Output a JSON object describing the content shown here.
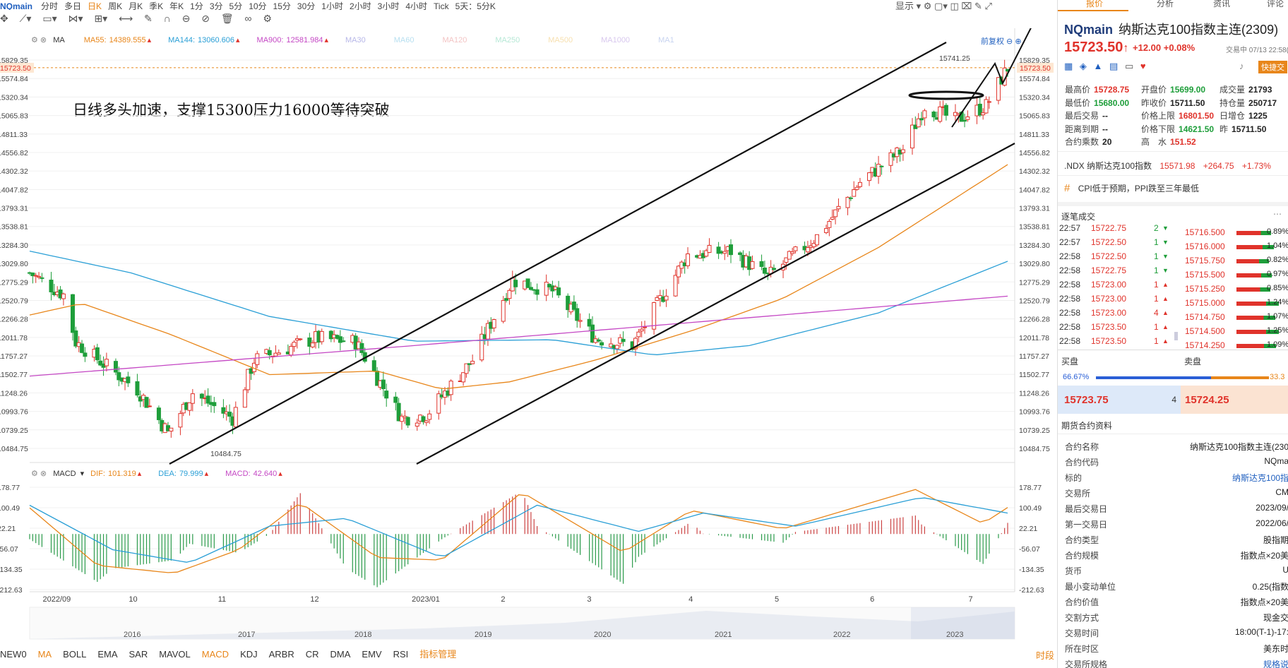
{
  "topbar": {
    "symbol": "NQmain",
    "periods": [
      "分时",
      "多日",
      "日K",
      "周K",
      "月K",
      "季K",
      "年K",
      "1分",
      "3分",
      "5分",
      "10分",
      "15分",
      "30分",
      "1小时",
      "2小时",
      "3小时",
      "4小时",
      "Tick",
      "5天：5分K"
    ],
    "active_period": "日K",
    "display_label": "显示"
  },
  "ma_legend": {
    "name": "MA",
    "items": [
      {
        "label": "MA55:",
        "value": "14389.555",
        "color": "#e8861a"
      },
      {
        "label": "MA144:",
        "value": "13060.606",
        "color": "#2a9fd6"
      },
      {
        "label": "MA900:",
        "value": "12581.984",
        "color": "#c447c4"
      },
      {
        "label": "MA30",
        "value": "",
        "color": "#b7b7e8"
      },
      {
        "label": "MA60",
        "value": "",
        "color": "#b7dff0"
      },
      {
        "label": "MA120",
        "value": "",
        "color": "#f3c4c4"
      },
      {
        "label": "MA250",
        "value": "",
        "color": "#b7e8d6"
      },
      {
        "label": "MA500",
        "value": "",
        "color": "#f7e0b0"
      },
      {
        "label": "MA1000",
        "value": "",
        "color": "#d8c8ee"
      },
      {
        "label": "MA1",
        "value": "",
        "color": "#c8d4f0"
      }
    ],
    "adjust_label": "前复权"
  },
  "annotation": "日线多头加速，支撑15300压力16000等待突破",
  "price_axis": [
    "15829.35",
    "15574.84",
    "15320.34",
    "15065.83",
    "14811.33",
    "14556.82",
    "14302.32",
    "14047.82",
    "13793.31",
    "13538.81",
    "13284.30",
    "13029.80",
    "12775.29",
    "12520.79",
    "12266.28",
    "12011.78",
    "11757.27",
    "11502.77",
    "11248.26",
    "10993.76",
    "10739.25",
    "10484.75"
  ],
  "current_price_tag": "15723.50",
  "high_label": "15741.25",
  "low_label": "10484.75",
  "macd_legend": {
    "name": "MACD",
    "items": [
      {
        "label": "DIF:",
        "value": "101.319",
        "color": "#e8861a"
      },
      {
        "label": "DEA:",
        "value": "79.999",
        "color": "#2a9fd6"
      },
      {
        "label": "MACD:",
        "value": "42.640",
        "color": "#c447c4"
      }
    ]
  },
  "macd_axis": [
    "178.77",
    "100.49",
    "22.21",
    "-56.07",
    "-134.35",
    "-212.63"
  ],
  "x_axis": [
    "2022/09",
    "10",
    "11",
    "12",
    "2023/01",
    "2",
    "3",
    "4",
    "5",
    "6",
    "7"
  ],
  "overview_years": [
    "2016",
    "2017",
    "2018",
    "2019",
    "2020",
    "2021",
    "2022",
    "2023"
  ],
  "bottombar": {
    "indicators": [
      "NEW0",
      "MA",
      "BOLL",
      "EMA",
      "SAR",
      "MAVOL",
      "MACD",
      "KDJ",
      "ARBR",
      "CR",
      "DMA",
      "EMV",
      "RSI",
      "指标管理"
    ],
    "active": [
      "MA",
      "MACD"
    ],
    "right_label": "时段"
  },
  "panel": {
    "tabs": [
      "报价",
      "分析",
      "资讯",
      "评论"
    ],
    "symbol": "NQmain",
    "name": "纳斯达克100指数主连(2309)",
    "price": "15723.50",
    "change": "+12.00",
    "change_pct": "+0.08%",
    "status_time": "交易中 07/13 22:58(美",
    "quick_trade": "快捷交",
    "stats": [
      {
        "k": "最高价",
        "v": "15728.75",
        "c": "red"
      },
      {
        "k": "开盘价",
        "v": "15699.00",
        "c": "green"
      },
      {
        "k": "成交量",
        "v": "21793",
        "c": "black"
      },
      {
        "k": "最低价",
        "v": "15680.00",
        "c": "green"
      },
      {
        "k": "昨收价",
        "v": "15711.50",
        "c": "black"
      },
      {
        "k": "持仓量",
        "v": "250717",
        "c": "black"
      },
      {
        "k": "最后交易",
        "v": "--",
        "c": "black"
      },
      {
        "k": "价格上限",
        "v": "16801.50",
        "c": "red"
      },
      {
        "k": "日增仓",
        "v": "1225",
        "c": "black"
      },
      {
        "k": "距离到期",
        "v": "--",
        "c": "black"
      },
      {
        "k": "价格下限",
        "v": "14621.50",
        "c": "green"
      },
      {
        "k": "昨",
        "v": "15711.50",
        "c": "black"
      },
      {
        "k": "合约乘数",
        "v": "20",
        "c": "black"
      },
      {
        "k": "高　水",
        "v": "151.52",
        "c": "red"
      }
    ],
    "index_line": {
      "name": ".NDX 纳斯达克100指数",
      "price": "15571.98",
      "chg": "+264.75",
      "pct": "+1.73%"
    },
    "news": "CPI低于预期，PPI跌至三年最低",
    "trades_title": "逐笔成交",
    "trades": [
      {
        "t": "22:57",
        "p": "15722.75",
        "v": "2",
        "d": "down"
      },
      {
        "t": "22:57",
        "p": "15722.50",
        "v": "1",
        "d": "down"
      },
      {
        "t": "22:58",
        "p": "15722.50",
        "v": "1",
        "d": "down"
      },
      {
        "t": "22:58",
        "p": "15722.75",
        "v": "1",
        "d": "down"
      },
      {
        "t": "22:58",
        "p": "15723.00",
        "v": "1",
        "d": "up"
      },
      {
        "t": "22:58",
        "p": "15723.00",
        "v": "1",
        "d": "up"
      },
      {
        "t": "22:58",
        "p": "15723.00",
        "v": "4",
        "d": "up"
      },
      {
        "t": "22:58",
        "p": "15723.50",
        "v": "1",
        "d": "up"
      },
      {
        "t": "22:58",
        "p": "15723.50",
        "v": "1",
        "d": "up"
      }
    ],
    "orderbook": [
      {
        "p": "15716.500",
        "pct": "0.89%",
        "bar": 0.7
      },
      {
        "p": "15716.000",
        "pct": "1.04%",
        "bar": 0.75
      },
      {
        "p": "15715.750",
        "pct": "0.82%",
        "bar": 0.65
      },
      {
        "p": "15715.500",
        "pct": "0.97%",
        "bar": 0.72
      },
      {
        "p": "15715.250",
        "pct": "0.85%",
        "bar": 0.68
      },
      {
        "p": "15715.000",
        "pct": "1.24%",
        "bar": 0.85
      },
      {
        "p": "15714.750",
        "pct": "1.07%",
        "bar": 0.78
      },
      {
        "p": "15714.500",
        "pct": "1.25%",
        "bar": 0.86
      },
      {
        "p": "15714.250",
        "pct": "1.09%",
        "bar": 0.8
      }
    ],
    "buy_label": "买盘",
    "sell_label": "卖盘",
    "buy_pct": "66.67%",
    "sell_pct": "33.3",
    "buy_ratio": 0.6667,
    "bid_price": "15723.75",
    "bid_size": "4",
    "ask_price": "15724.25",
    "contract_title": "期货合约资料",
    "contract": [
      {
        "k": "合约名称",
        "v": "纳斯达克100指数主连(230"
      },
      {
        "k": "合约代码",
        "v": "NQma"
      },
      {
        "k": "标的",
        "v": "纳斯达克100指"
      },
      {
        "k": "交易所",
        "v": "CM"
      },
      {
        "k": "最后交易日",
        "v": "2023/09/"
      },
      {
        "k": "第一交易日",
        "v": "2022/06/"
      },
      {
        "k": "合约类型",
        "v": "股指期"
      },
      {
        "k": "合约规模",
        "v": "指数点×20美"
      },
      {
        "k": "货币",
        "v": "U"
      },
      {
        "k": "最小变动单位",
        "v": "0.25(指数"
      },
      {
        "k": "合约价值",
        "v": "指数点×20美"
      },
      {
        "k": "交割方式",
        "v": "现金交"
      },
      {
        "k": "交易时间",
        "v": "18:00(T-1)-17:"
      },
      {
        "k": "所在时区",
        "v": "美东时"
      },
      {
        "k": "交易所规格",
        "v": "规格说"
      }
    ]
  },
  "chart_data": {
    "type": "candlestick",
    "symbol": "NQmain",
    "period": "daily",
    "x_range": [
      "2022/09",
      "2023/07"
    ],
    "ylim": [
      10484.75,
      15829.35
    ],
    "key_values": {
      "high": 15741.25,
      "low": 10484.75,
      "last": 15723.5
    },
    "close_path": [
      {
        "d": "2022-08-29",
        "v": 12900
      },
      {
        "d": "2022-09-09",
        "v": 12600
      },
      {
        "d": "2022-09-13",
        "v": 11950
      },
      {
        "d": "2022-09-22",
        "v": 11650
      },
      {
        "d": "2022-10-03",
        "v": 11300
      },
      {
        "d": "2022-10-13",
        "v": 10700
      },
      {
        "d": "2022-10-21",
        "v": 11250
      },
      {
        "d": "2022-11-03",
        "v": 10900
      },
      {
        "d": "2022-11-10",
        "v": 11700
      },
      {
        "d": "2022-11-30",
        "v": 12000
      },
      {
        "d": "2022-12-13",
        "v": 11950
      },
      {
        "d": "2022-12-28",
        "v": 10900
      },
      {
        "d": "2023-01-05",
        "v": 10950
      },
      {
        "d": "2023-01-20",
        "v": 11700
      },
      {
        "d": "2023-02-02",
        "v": 12800
      },
      {
        "d": "2023-02-15",
        "v": 12650
      },
      {
        "d": "2023-03-01",
        "v": 12000
      },
      {
        "d": "2023-03-13",
        "v": 11900
      },
      {
        "d": "2023-03-31",
        "v": 13150
      },
      {
        "d": "2023-04-14",
        "v": 13200
      },
      {
        "d": "2023-04-26",
        "v": 12850
      },
      {
        "d": "2023-05-12",
        "v": 13400
      },
      {
        "d": "2023-05-26",
        "v": 14150
      },
      {
        "d": "2023-06-09",
        "v": 14600
      },
      {
        "d": "2023-06-16",
        "v": 15200
      },
      {
        "d": "2023-06-26",
        "v": 15000
      },
      {
        "d": "2023-07-06",
        "v": 15200
      },
      {
        "d": "2023-07-13",
        "v": 15723.5
      }
    ],
    "ma55_path": [
      {
        "d": "2022-08-29",
        "v": 12320
      },
      {
        "d": "2022-09-15",
        "v": 12480
      },
      {
        "d": "2022-10-14",
        "v": 12050
      },
      {
        "d": "2022-11-15",
        "v": 11500
      },
      {
        "d": "2022-12-20",
        "v": 11550
      },
      {
        "d": "2023-01-10",
        "v": 11300
      },
      {
        "d": "2023-02-01",
        "v": 11400
      },
      {
        "d": "2023-03-01",
        "v": 11700
      },
      {
        "d": "2023-04-01",
        "v": 12100
      },
      {
        "d": "2023-05-01",
        "v": 12550
      },
      {
        "d": "2023-06-01",
        "v": 13250
      },
      {
        "d": "2023-07-13",
        "v": 14390
      }
    ],
    "ma144_path": [
      {
        "d": "2022-08-29",
        "v": 13200
      },
      {
        "d": "2022-10-01",
        "v": 12900
      },
      {
        "d": "2022-11-15",
        "v": 12300
      },
      {
        "d": "2023-01-01",
        "v": 11960
      },
      {
        "d": "2023-02-15",
        "v": 11980
      },
      {
        "d": "2023-03-20",
        "v": 11770
      },
      {
        "d": "2023-04-20",
        "v": 11900
      },
      {
        "d": "2023-06-01",
        "v": 12350
      },
      {
        "d": "2023-07-13",
        "v": 13060
      }
    ],
    "ma900_path": [
      {
        "d": "2022-08-29",
        "v": 11480
      },
      {
        "d": "2023-01-01",
        "v": 11900
      },
      {
        "d": "2023-07-13",
        "v": 12580
      }
    ],
    "dif_path": [
      {
        "d": "2022-08-29",
        "v": 100
      },
      {
        "d": "2022-09-20",
        "v": -120
      },
      {
        "d": "2022-10-15",
        "v": -150
      },
      {
        "d": "2022-11-05",
        "v": -60
      },
      {
        "d": "2022-11-25",
        "v": 120
      },
      {
        "d": "2022-12-20",
        "v": -90
      },
      {
        "d": "2023-01-10",
        "v": -100
      },
      {
        "d": "2023-02-05",
        "v": 160
      },
      {
        "d": "2023-03-10",
        "v": -70
      },
      {
        "d": "2023-04-01",
        "v": 90
      },
      {
        "d": "2023-05-01",
        "v": 20
      },
      {
        "d": "2023-06-13",
        "v": 170
      },
      {
        "d": "2023-07-05",
        "v": 40
      },
      {
        "d": "2023-07-13",
        "v": 101.3
      }
    ],
    "dea_path": [
      {
        "d": "2022-08-29",
        "v": 110
      },
      {
        "d": "2022-09-25",
        "v": -60
      },
      {
        "d": "2022-10-20",
        "v": -110
      },
      {
        "d": "2022-11-15",
        "v": 30
      },
      {
        "d": "2022-12-10",
        "v": 60
      },
      {
        "d": "2023-01-10",
        "v": -90
      },
      {
        "d": "2023-02-10",
        "v": 110
      },
      {
        "d": "2023-03-15",
        "v": 10
      },
      {
        "d": "2023-04-05",
        "v": 80
      },
      {
        "d": "2023-05-05",
        "v": 30
      },
      {
        "d": "2023-06-15",
        "v": 140
      },
      {
        "d": "2023-07-13",
        "v": 80
      }
    ],
    "series_names": [
      "MA55",
      "MA144",
      "MA900",
      "DIF",
      "DEA",
      "MACD"
    ],
    "trendlines": "two parallel ascending channel lines",
    "grid": true
  }
}
